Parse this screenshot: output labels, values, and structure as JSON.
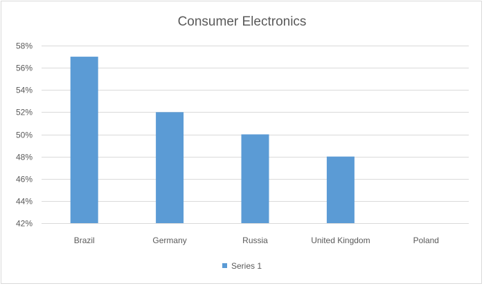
{
  "chart_data": {
    "type": "bar",
    "title": "Consumer Electronics",
    "categories": [
      "Brazil",
      "Germany",
      "Russia",
      "United Kingdom",
      "Poland"
    ],
    "series": [
      {
        "name": "Series 1",
        "values": [
          57,
          52,
          50,
          48,
          null
        ],
        "color": "#5b9bd5"
      }
    ],
    "ylim": [
      42,
      58
    ],
    "yticks": [
      42,
      44,
      46,
      48,
      50,
      52,
      54,
      56,
      58
    ],
    "ytick_labels": [
      "42%",
      "44%",
      "46%",
      "48%",
      "50%",
      "52%",
      "54%",
      "56%",
      "58%"
    ],
    "xlabel": "",
    "ylabel": "",
    "grid": true,
    "legend_position": "bottom"
  }
}
